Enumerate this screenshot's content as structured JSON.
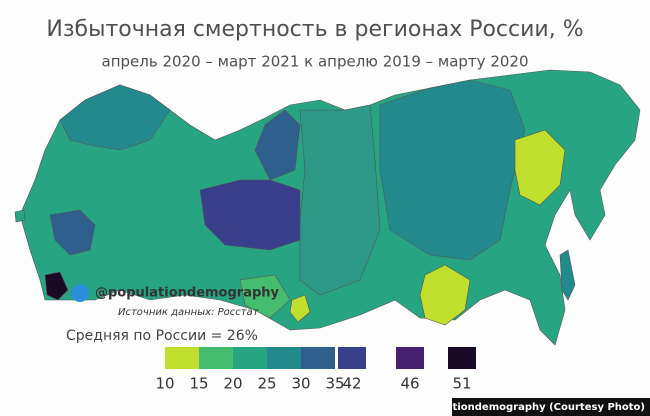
{
  "header": {
    "title": "Избыточная смертность в регионах России, %",
    "subtitle": "апрель 2020 – март 2021 к апрелю 2019 – марту 2020"
  },
  "watermark": "@populationdemography",
  "source": "Источник данных: Росстат",
  "average": "Средняя по России = 26%",
  "legend": {
    "ticks": [
      10,
      15,
      20,
      25,
      30,
      35
    ],
    "scale_colors": [
      "#bfdf2c",
      "#45bd6f",
      "#27a583",
      "#228a8c",
      "#2f5f8d"
    ],
    "swatches": [
      {
        "value": 42,
        "color": "#3a3f8b"
      },
      {
        "value": 46,
        "color": "#45206e"
      },
      {
        "value": 51,
        "color": "#1a0a28"
      }
    ]
  },
  "credit": "@populationdemography (Courtesy Photo)"
}
